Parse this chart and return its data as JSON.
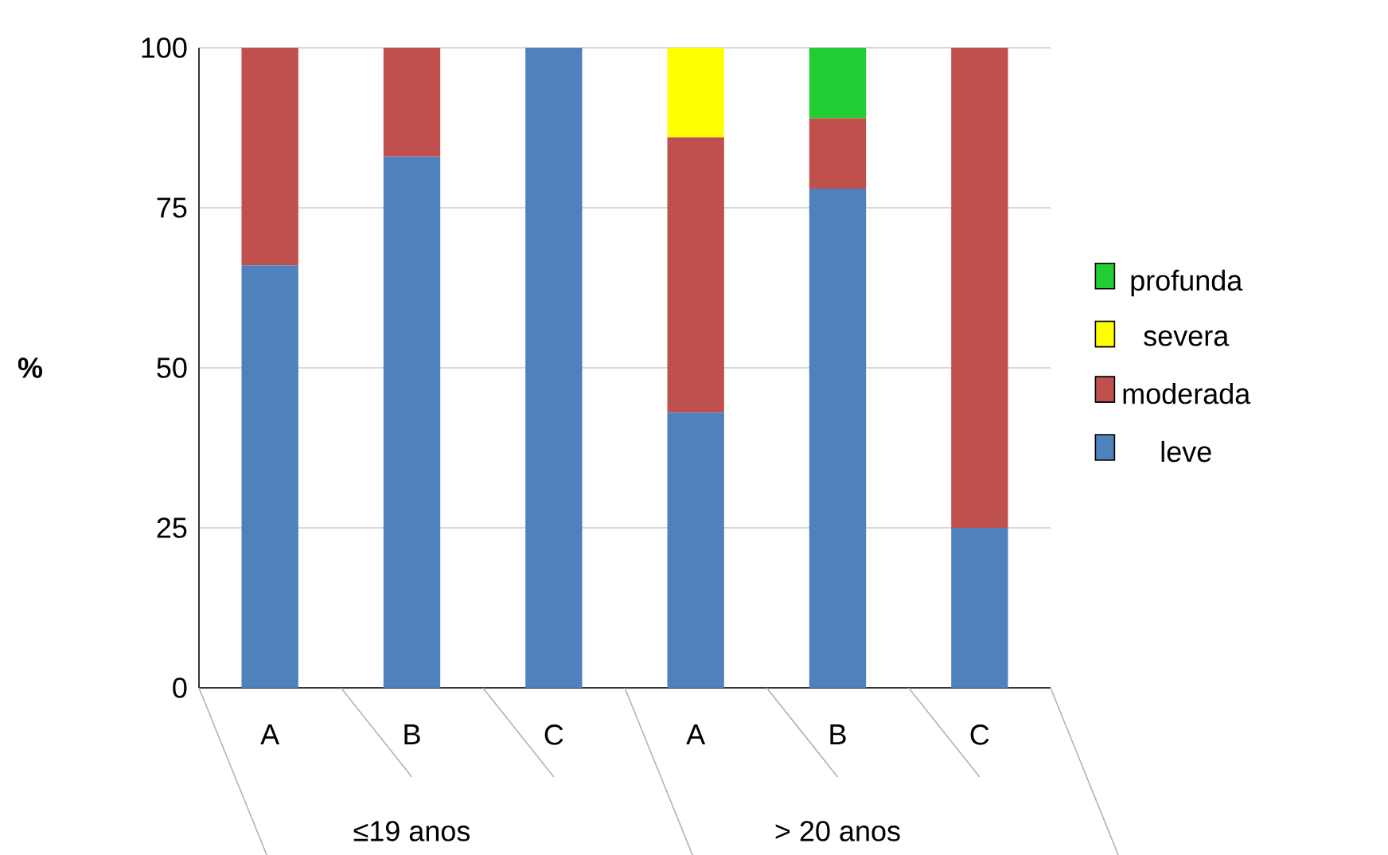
{
  "chart_data": {
    "type": "bar",
    "stacked": true,
    "ylabel": "%",
    "categories": [
      "A",
      "B",
      "C",
      "A",
      "B",
      "C"
    ],
    "series": [
      {
        "name": "leve",
        "color": "#4f81bd",
        "values": [
          66,
          83,
          100,
          43,
          78,
          25
        ]
      },
      {
        "name": "moderada",
        "color": "#c0504d",
        "values": [
          34,
          17,
          0,
          43,
          11,
          75
        ]
      },
      {
        "name": "severa",
        "color": "#ffff00",
        "values": [
          0,
          0,
          0,
          14,
          0,
          0
        ]
      },
      {
        "name": "profunda",
        "color": "#22cc33",
        "values": [
          0,
          0,
          0,
          0,
          11,
          0
        ]
      }
    ],
    "ylim": [
      0,
      100
    ],
    "yticks": [
      0,
      25,
      50,
      75,
      100
    ],
    "grid": "y",
    "legend": "right",
    "annotations": [
      "≤19 anos",
      "> 20 anos"
    ]
  }
}
